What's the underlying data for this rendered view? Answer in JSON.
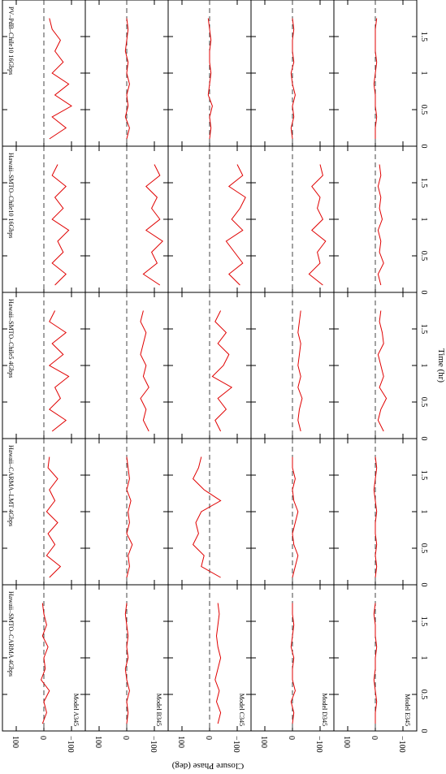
{
  "chart_data": {
    "type": "line",
    "xlabel": "Time (hr)",
    "ylabel": "Closure Phase (deg)",
    "rows": [
      "Model A345",
      "Model B345",
      "Model C345",
      "Model D345",
      "Model E345"
    ],
    "columns": [
      "Hawaii–SMTO–CARMA 4Gbps",
      "Hawaii–CARMA–LMT 4Gbps",
      "Hawaii–SMTO–Chile5 4Gbps",
      "Hawaii–SMTO–Chile10 16Gbps",
      "PV–PdB–Chile10 16Gbps"
    ],
    "color": "#e00000",
    "xlim": [
      0,
      2
    ],
    "xticks": [
      0,
      0.5,
      1,
      1.5
    ],
    "ylim": [
      -150,
      150
    ],
    "yticks": [
      100,
      0,
      {
        "value": -100,
        "label": "−100"
      }
    ],
    "x": [
      0.1,
      0.25,
      0.4,
      0.55,
      0.7,
      0.85,
      1.0,
      1.15,
      1.3,
      1.45,
      1.6,
      1.75
    ],
    "panels": [
      [
        [
          5,
          -10,
          0,
          -20,
          10,
          -5,
          0,
          -15,
          5,
          -10,
          0,
          5
        ],
        [
          0,
          -5,
          0,
          -10,
          0,
          5,
          -5,
          0,
          -5,
          0,
          5,
          0
        ],
        [
          -30,
          -40,
          -25,
          -35,
          -20,
          -30,
          -40,
          -30,
          -25,
          -30,
          -35,
          -30
        ],
        [
          0,
          -5,
          5,
          -10,
          0,
          0,
          -5,
          5,
          0,
          -5,
          0,
          0
        ],
        [
          0,
          0,
          -5,
          0,
          5,
          0,
          0,
          -5,
          0,
          0,
          5,
          0
        ]
      ],
      [
        [
          -20,
          -60,
          -10,
          -40,
          -15,
          -50,
          -10,
          -40,
          -20,
          -50,
          -15,
          -20
        ],
        [
          0,
          -10,
          -5,
          -20,
          0,
          -10,
          -5,
          -15,
          0,
          -10,
          -5,
          0
        ],
        [
          -40,
          30,
          20,
          60,
          40,
          50,
          30,
          -40,
          20,
          60,
          40,
          30
        ],
        [
          0,
          -10,
          -20,
          -5,
          0,
          -10,
          -20,
          -5,
          0,
          -10,
          0,
          0
        ],
        [
          0,
          -5,
          0,
          -5,
          0,
          0,
          -5,
          0,
          5,
          0,
          -5,
          0
        ]
      ],
      [
        [
          -30,
          -80,
          -20,
          -60,
          -40,
          -90,
          -20,
          -70,
          -30,
          -80,
          -20,
          -40
        ],
        [
          -80,
          -60,
          -70,
          -50,
          -80,
          -60,
          -70,
          -50,
          -60,
          -70,
          -50,
          -60
        ],
        [
          -40,
          -20,
          -60,
          -30,
          -80,
          -10,
          -50,
          -70,
          -30,
          -60,
          -20,
          -40
        ],
        [
          -30,
          -20,
          -25,
          -35,
          -20,
          -30,
          -20,
          -25,
          -30,
          -20,
          -25,
          -30
        ],
        [
          -30,
          -10,
          -20,
          -40,
          -15,
          -30,
          -20,
          -10,
          -30,
          -25,
          -15,
          -20
        ]
      ],
      [
        [
          -40,
          -80,
          -30,
          -70,
          -50,
          -90,
          -30,
          -70,
          -40,
          -80,
          -30,
          -50
        ],
        [
          -120,
          -60,
          -110,
          -90,
          -130,
          -70,
          -120,
          -90,
          -110,
          -70,
          -120,
          -100
        ],
        [
          -110,
          -70,
          -120,
          -90,
          -60,
          -120,
          -80,
          -110,
          -130,
          -70,
          -120,
          -100
        ],
        [
          -110,
          -60,
          -100,
          -90,
          -120,
          -70,
          -110,
          -90,
          -100,
          -70,
          -110,
          -100
        ],
        [
          -20,
          -10,
          -30,
          -15,
          -20,
          -10,
          -25,
          -15,
          -20,
          -10,
          -20,
          -15
        ]
      ],
      [
        [
          -20,
          -80,
          -30,
          -100,
          -40,
          -90,
          -30,
          -70,
          -40,
          -60,
          -30,
          -20
        ],
        [
          0,
          -10,
          5,
          -5,
          0,
          -10,
          0,
          -5,
          5,
          0,
          -5,
          0
        ],
        [
          0,
          -5,
          0,
          -10,
          5,
          0,
          -5,
          0,
          0,
          -5,
          0,
          5
        ],
        [
          0,
          5,
          -5,
          0,
          -10,
          0,
          5,
          -5,
          0,
          0,
          -5,
          0
        ],
        [
          0,
          0,
          -5,
          0,
          0,
          5,
          0,
          -5,
          0,
          0,
          0,
          -5
        ]
      ]
    ]
  }
}
